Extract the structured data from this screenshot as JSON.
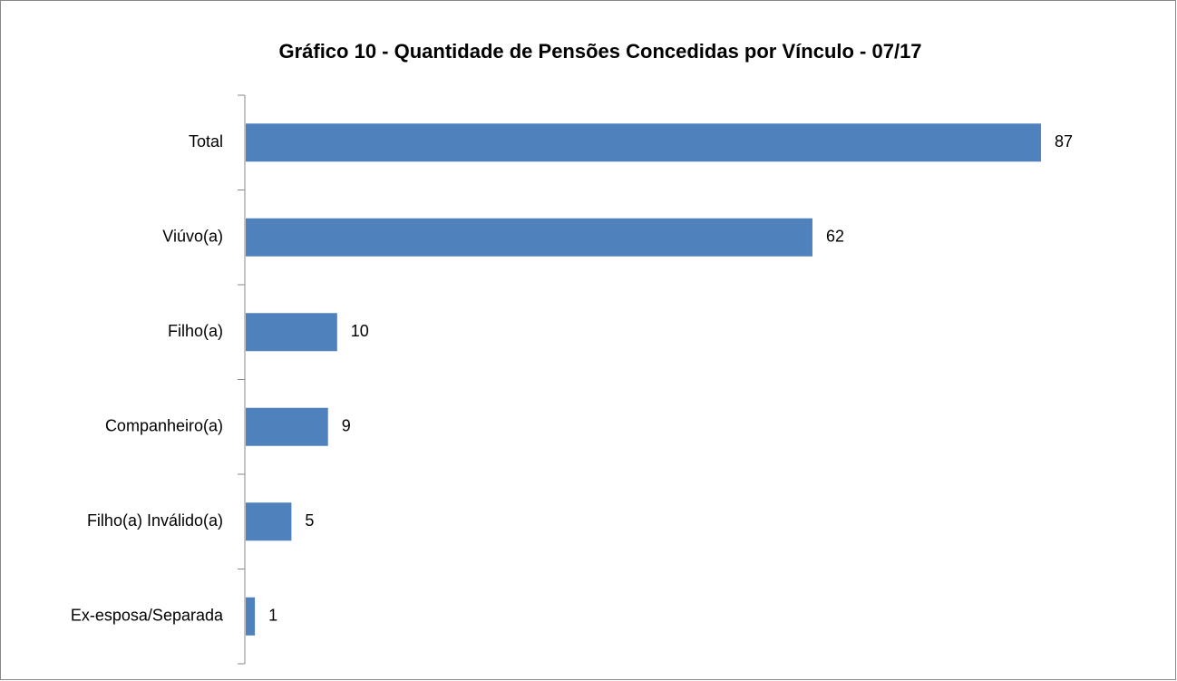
{
  "chart_data": {
    "type": "bar",
    "orientation": "horizontal",
    "title": "Gráfico 10 - Quantidade de Pensões Concedidas por Vínculo - 07/17",
    "categories": [
      "Total",
      "Viúvo(a)",
      "Filho(a)",
      "Companheiro(a)",
      "Filho(a) Inválido(a)",
      "Ex-esposa/Separada"
    ],
    "values": [
      87,
      62,
      10,
      9,
      5,
      1
    ],
    "color": "#4f81bd"
  }
}
